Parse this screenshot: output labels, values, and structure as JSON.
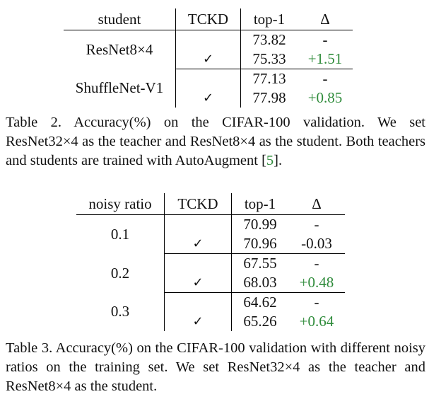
{
  "table2": {
    "headers": {
      "col1": "student",
      "col2": "TCKD",
      "col3": "top-1",
      "col4": "Δ"
    },
    "groups": [
      {
        "label": "ResNet8×4",
        "rows": [
          {
            "tckd": "",
            "top1": "73.82",
            "delta": "-"
          },
          {
            "tckd": "✓",
            "top1": "75.33",
            "delta": "+1.51"
          }
        ]
      },
      {
        "label": "ShuffleNet-V1",
        "rows": [
          {
            "tckd": "",
            "top1": "77.13",
            "delta": "-"
          },
          {
            "tckd": "✓",
            "top1": "77.98",
            "delta": "+0.85"
          }
        ]
      }
    ],
    "caption": {
      "text": "Table 2.  Accuracy(%) on the CIFAR-100 validation.  We set ResNet32×4 as the teacher and ResNet8×4 as the student.  Both teachers and students are trained with AutoAugment [",
      "ref": "5",
      "end": "]."
    }
  },
  "table3": {
    "headers": {
      "col1": "noisy ratio",
      "col2": "TCKD",
      "col3": "top-1",
      "col4": "Δ"
    },
    "groups": [
      {
        "label": "0.1",
        "rows": [
          {
            "tckd": "",
            "top1": "70.99",
            "delta": "-"
          },
          {
            "tckd": "✓",
            "top1": "70.96",
            "delta": "-0.03"
          }
        ]
      },
      {
        "label": "0.2",
        "rows": [
          {
            "tckd": "",
            "top1": "67.55",
            "delta": "-"
          },
          {
            "tckd": "✓",
            "top1": "68.03",
            "delta": "+0.48"
          }
        ]
      },
      {
        "label": "0.3",
        "rows": [
          {
            "tckd": "",
            "top1": "64.62",
            "delta": "-"
          },
          {
            "tckd": "✓",
            "top1": "65.26",
            "delta": "+0.64"
          }
        ]
      }
    ],
    "caption": "Table 3. Accuracy(%) on the CIFAR-100 validation with different noisy ratios on the training set. We set ResNet32×4 as the teacher and ResNet8×4 as the student."
  },
  "colors": {
    "positive_delta": "#2e8b3a",
    "citation_link": "#2e8b3a"
  }
}
